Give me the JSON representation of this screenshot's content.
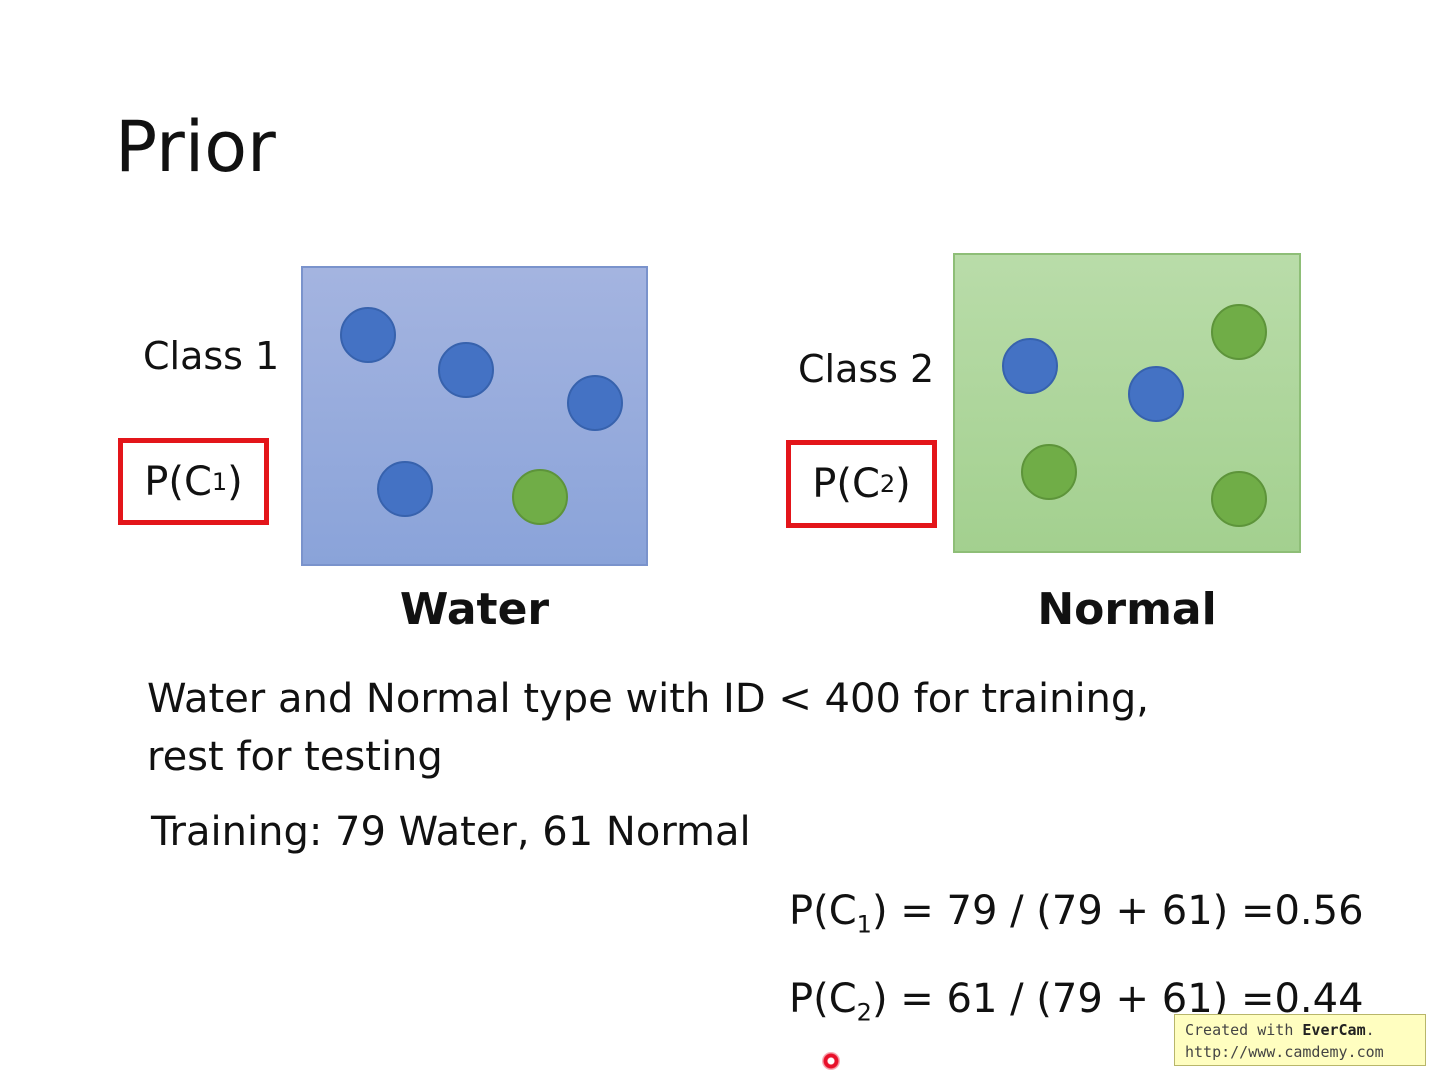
{
  "slide": {
    "title": "Prior"
  },
  "class1": {
    "label": "Class 1",
    "prob_base": "P(C",
    "prob_sub": "1",
    "prob_close": ")",
    "type_name": "Water",
    "dots": [
      "blue",
      "blue",
      "blue",
      "blue",
      "green"
    ]
  },
  "class2": {
    "label": "Class 2",
    "prob_base": "P(C",
    "prob_sub": "2",
    "prob_close": ")",
    "type_name": "Normal",
    "dots": [
      "blue",
      "blue",
      "green",
      "green",
      "green"
    ]
  },
  "text": {
    "line1": "Water and Normal type with ID < 400 for training,",
    "line2": "rest for testing",
    "training": "Training: 79 Water, 61 Normal"
  },
  "formulas": {
    "f1_base": "P(C",
    "f1_sub": "1",
    "f1_rest": ") = 79 / (79 + 61) =0.56",
    "f2_base": "P(C",
    "f2_sub": "2",
    "f2_rest": ") = 61 / (79 + 61) =0.44"
  },
  "watermark": {
    "prefix": "Created with ",
    "brand": "EverCam",
    "suffix": ".",
    "url": "http://www.camdemy.com"
  },
  "colors": {
    "water_dot": "#4472c4",
    "normal_dot": "#70ad47",
    "highlight_box": "#e3151a"
  }
}
